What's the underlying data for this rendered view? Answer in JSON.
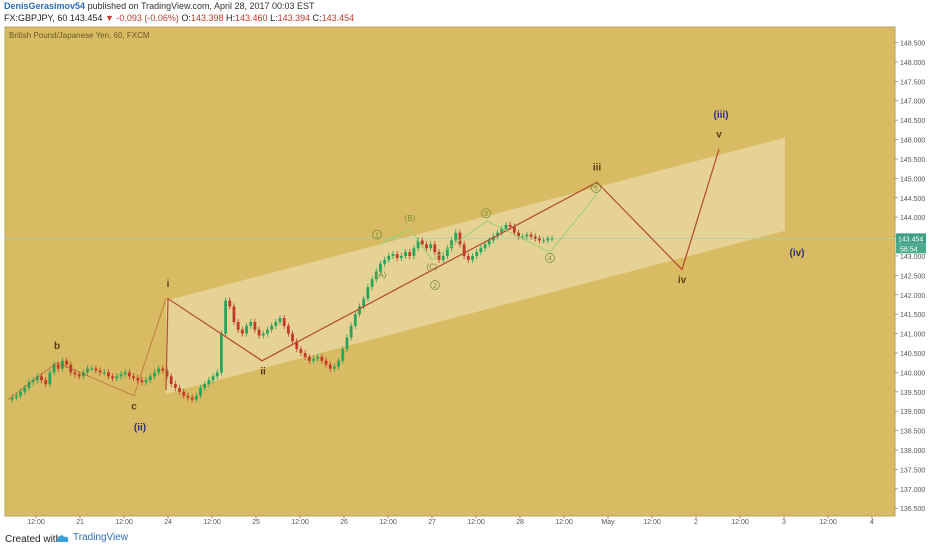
{
  "header": {
    "author": "DenisGerasimov54",
    "published": "published on TradingView.com, April 28, 2017 00:03 EST",
    "symbol": "FX:GBPJPY, 60",
    "last": "143.454",
    "change": "▼ -0.093 (-0.06%)",
    "o_label": "O:",
    "o": "143.398",
    "h_label": "H:",
    "h": "143.460",
    "l_label": "L:",
    "l": "143.394",
    "c_label": "C:",
    "c": "143.454"
  },
  "footer": {
    "created_with": "Created with",
    "brand": "TradingView"
  },
  "chart_data": {
    "type": "candlestick",
    "title": "British Pound/Japanese Yen, 60, FXCM",
    "background": "#d8bb62",
    "colors": {
      "up": "#26a65b",
      "down": "#c0392b",
      "wave": "#b5482f",
      "projection": "#8fcf6d",
      "channel": "#f2e6bf",
      "price_line": "#9fd3b8",
      "label_dark": "#5a3d17",
      "label_navy": "#2b2f86",
      "label_green": "#7a8f3a"
    },
    "y_range": [
      136.3,
      148.9
    ],
    "y_ticks": [
      "136.500",
      "137.000",
      "137.500",
      "138.000",
      "138.500",
      "139.000",
      "139.500",
      "140.000",
      "140.500",
      "141.000",
      "141.500",
      "142.000",
      "142.500",
      "143.000",
      "143.500",
      "144.000",
      "144.500",
      "145.000",
      "145.500",
      "146.000",
      "146.500",
      "147.000",
      "147.500",
      "148.000",
      "148.500"
    ],
    "x_ticks": [
      "12:00",
      "21",
      "12:00",
      "24",
      "12:00",
      "25",
      "12:00",
      "26",
      "12:00",
      "27",
      "12:00",
      "28",
      "12:00",
      "May",
      "12:00",
      "2",
      "12:00",
      "3",
      "12:00",
      "4"
    ],
    "price_label": "143.454",
    "countdown_label": "56:54",
    "price_series": [
      139.3,
      139.35,
      139.4,
      139.5,
      139.6,
      139.75,
      139.8,
      139.9,
      139.8,
      139.7,
      140.0,
      140.2,
      140.1,
      140.3,
      140.2,
      140.0,
      139.95,
      139.9,
      140.0,
      140.1,
      140.1,
      140.05,
      140.0,
      140.0,
      139.9,
      139.85,
      139.9,
      139.95,
      140.0,
      139.9,
      139.85,
      139.8,
      139.75,
      139.8,
      139.9,
      140.0,
      140.1,
      140.05,
      139.9,
      139.7,
      139.6,
      139.5,
      139.4,
      139.35,
      139.3,
      139.4,
      139.6,
      139.7,
      139.8,
      139.9,
      140.0,
      141.0,
      141.85,
      141.7,
      141.3,
      141.1,
      141.0,
      141.2,
      141.3,
      141.1,
      140.95,
      141.0,
      141.1,
      141.2,
      141.3,
      141.4,
      141.2,
      141.0,
      140.8,
      140.6,
      140.5,
      140.4,
      140.3,
      140.35,
      140.4,
      140.3,
      140.2,
      140.1,
      140.15,
      140.3,
      140.6,
      140.9,
      141.2,
      141.5,
      141.7,
      141.9,
      142.2,
      142.4,
      142.6,
      142.8,
      142.9,
      143.0,
      143.05,
      142.95,
      143.0,
      143.1,
      143.0,
      143.2,
      143.4,
      143.3,
      143.2,
      143.3,
      143.1,
      142.9,
      143.0,
      143.2,
      143.4,
      143.6,
      143.3,
      143.0,
      142.9,
      143.0,
      143.1,
      143.2,
      143.3,
      143.4,
      143.5,
      143.6,
      143.7,
      143.8,
      143.75,
      143.6,
      143.5,
      143.5,
      143.55,
      143.5,
      143.45,
      143.4,
      143.4,
      143.45,
      143.45
    ],
    "wave_path": [
      [
        166,
        139.55
      ],
      [
        168,
        141.9
      ],
      [
        262,
        140.3
      ],
      [
        597,
        144.9
      ],
      [
        682,
        142.65
      ],
      [
        719,
        145.75
      ]
    ],
    "zigzag_path": [
      [
        8,
        139.3
      ],
      [
        57,
        140.25
      ],
      [
        134,
        139.4
      ],
      [
        166,
        141.9
      ]
    ],
    "projection_path": [
      [
        380,
        143.3
      ],
      [
        410,
        143.7
      ],
      [
        432,
        142.9
      ],
      [
        487,
        143.9
      ],
      [
        550,
        143.1
      ],
      [
        597,
        144.6
      ]
    ],
    "labels": [
      {
        "text": "b",
        "x": 57,
        "y": 140.6,
        "color": "label_dark",
        "bold": true
      },
      {
        "text": "c",
        "x": 134,
        "y": 139.05,
        "color": "label_dark",
        "bold": true
      },
      {
        "text": "(ii)",
        "x": 140,
        "y": 138.5,
        "color": "label_navy",
        "bold": true
      },
      {
        "text": "i",
        "x": 168,
        "y": 142.2,
        "color": "label_dark",
        "bold": true
      },
      {
        "text": "ii",
        "x": 263,
        "y": 139.95,
        "color": "label_dark",
        "bold": true
      },
      {
        "text": "iii",
        "x": 597,
        "y": 145.2,
        "color": "label_dark",
        "bold": true
      },
      {
        "text": "iv",
        "x": 682,
        "y": 142.3,
        "color": "label_dark",
        "bold": true
      },
      {
        "text": "v",
        "x": 719,
        "y": 146.05,
        "color": "label_dark",
        "bold": true
      },
      {
        "text": "(iii)",
        "x": 721,
        "y": 146.55,
        "color": "label_navy",
        "bold": true
      },
      {
        "text": "(iv)",
        "x": 797,
        "y": 143.0,
        "color": "label_navy",
        "bold": true
      },
      {
        "text": "(A)",
        "x": 381,
        "y": 142.45,
        "color": "label_green",
        "bold": false
      },
      {
        "text": "(B)",
        "x": 410,
        "y": 143.9,
        "color": "label_green",
        "bold": false
      },
      {
        "text": "(C)",
        "x": 432,
        "y": 142.65,
        "color": "label_green",
        "bold": false
      }
    ],
    "circled": [
      {
        "text": "1",
        "x": 377,
        "y": 143.55
      },
      {
        "text": "2",
        "x": 435,
        "y": 142.25
      },
      {
        "text": "3",
        "x": 486,
        "y": 144.1
      },
      {
        "text": "4",
        "x": 550,
        "y": 142.95
      },
      {
        "text": "5",
        "x": 596,
        "y": 144.75
      }
    ]
  }
}
